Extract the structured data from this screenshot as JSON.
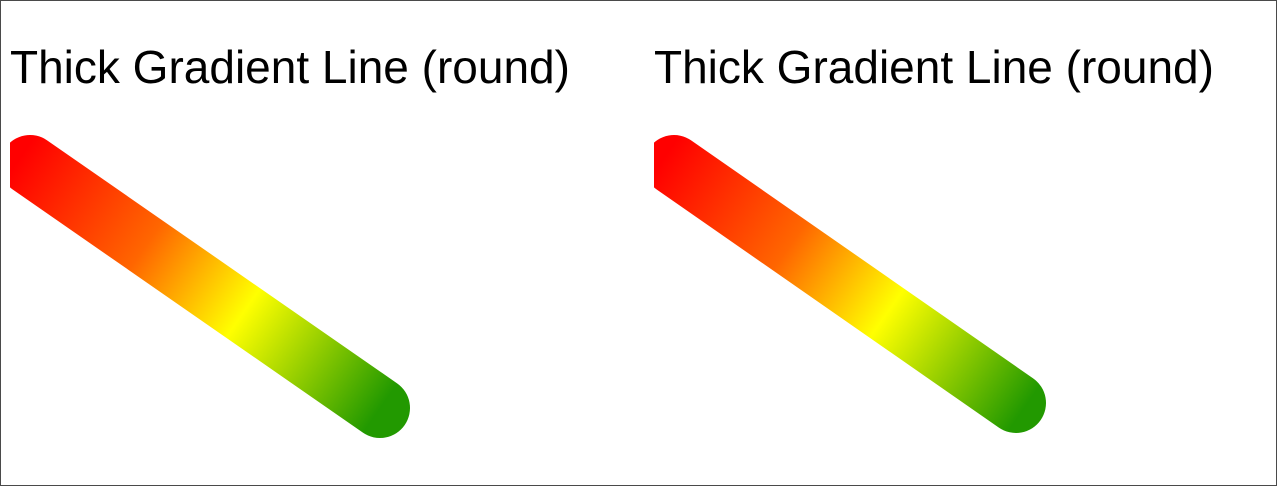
{
  "panels": [
    {
      "title": "Thick Gradient Line (round)"
    },
    {
      "title": "Thick Gradient Line (round)"
    }
  ],
  "gradient": {
    "start_color": "#ff0000",
    "mid1_color": "#ff6600",
    "mid2_color": "#ffff00",
    "end_color": "#229900"
  },
  "line_cap": "round"
}
